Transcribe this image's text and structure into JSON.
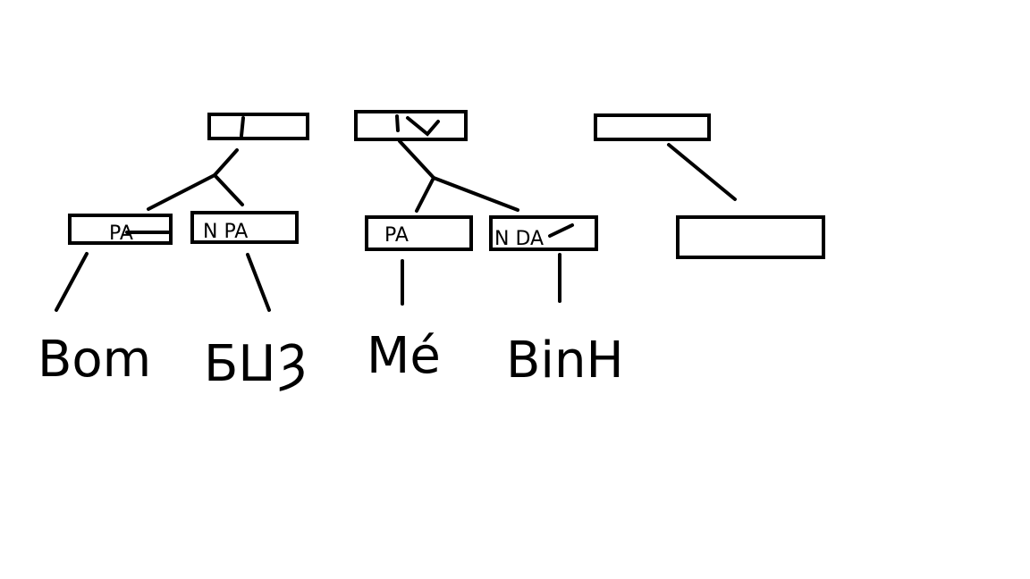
{
  "diagram": {
    "type": "hand-drawn tree",
    "stroke_color": "#000000",
    "background_color": "#ffffff",
    "roots": [
      {
        "id": "root-1",
        "label": "|"
      },
      {
        "id": "root-2",
        "label": "IV"
      },
      {
        "id": "root-3",
        "label": ""
      }
    ],
    "children": [
      {
        "id": "child-1",
        "parent": "root-1",
        "label": "PA"
      },
      {
        "id": "child-2",
        "parent": "root-1",
        "label": "N PA"
      },
      {
        "id": "child-3",
        "parent": "root-2",
        "label": "PA"
      },
      {
        "id": "child-4",
        "parent": "root-2",
        "label": "N DA"
      },
      {
        "id": "child-5",
        "parent": "root-3",
        "label": ""
      }
    ],
    "leaves": [
      {
        "id": "leaf-1",
        "parent": "child-1",
        "label": "Bom"
      },
      {
        "id": "leaf-2",
        "parent": "child-2",
        "label": "ƂⵡȜ"
      },
      {
        "id": "leaf-3",
        "parent": "child-3",
        "label": "Mé"
      },
      {
        "id": "leaf-4",
        "parent": "child-4",
        "label": "BinH"
      }
    ]
  }
}
